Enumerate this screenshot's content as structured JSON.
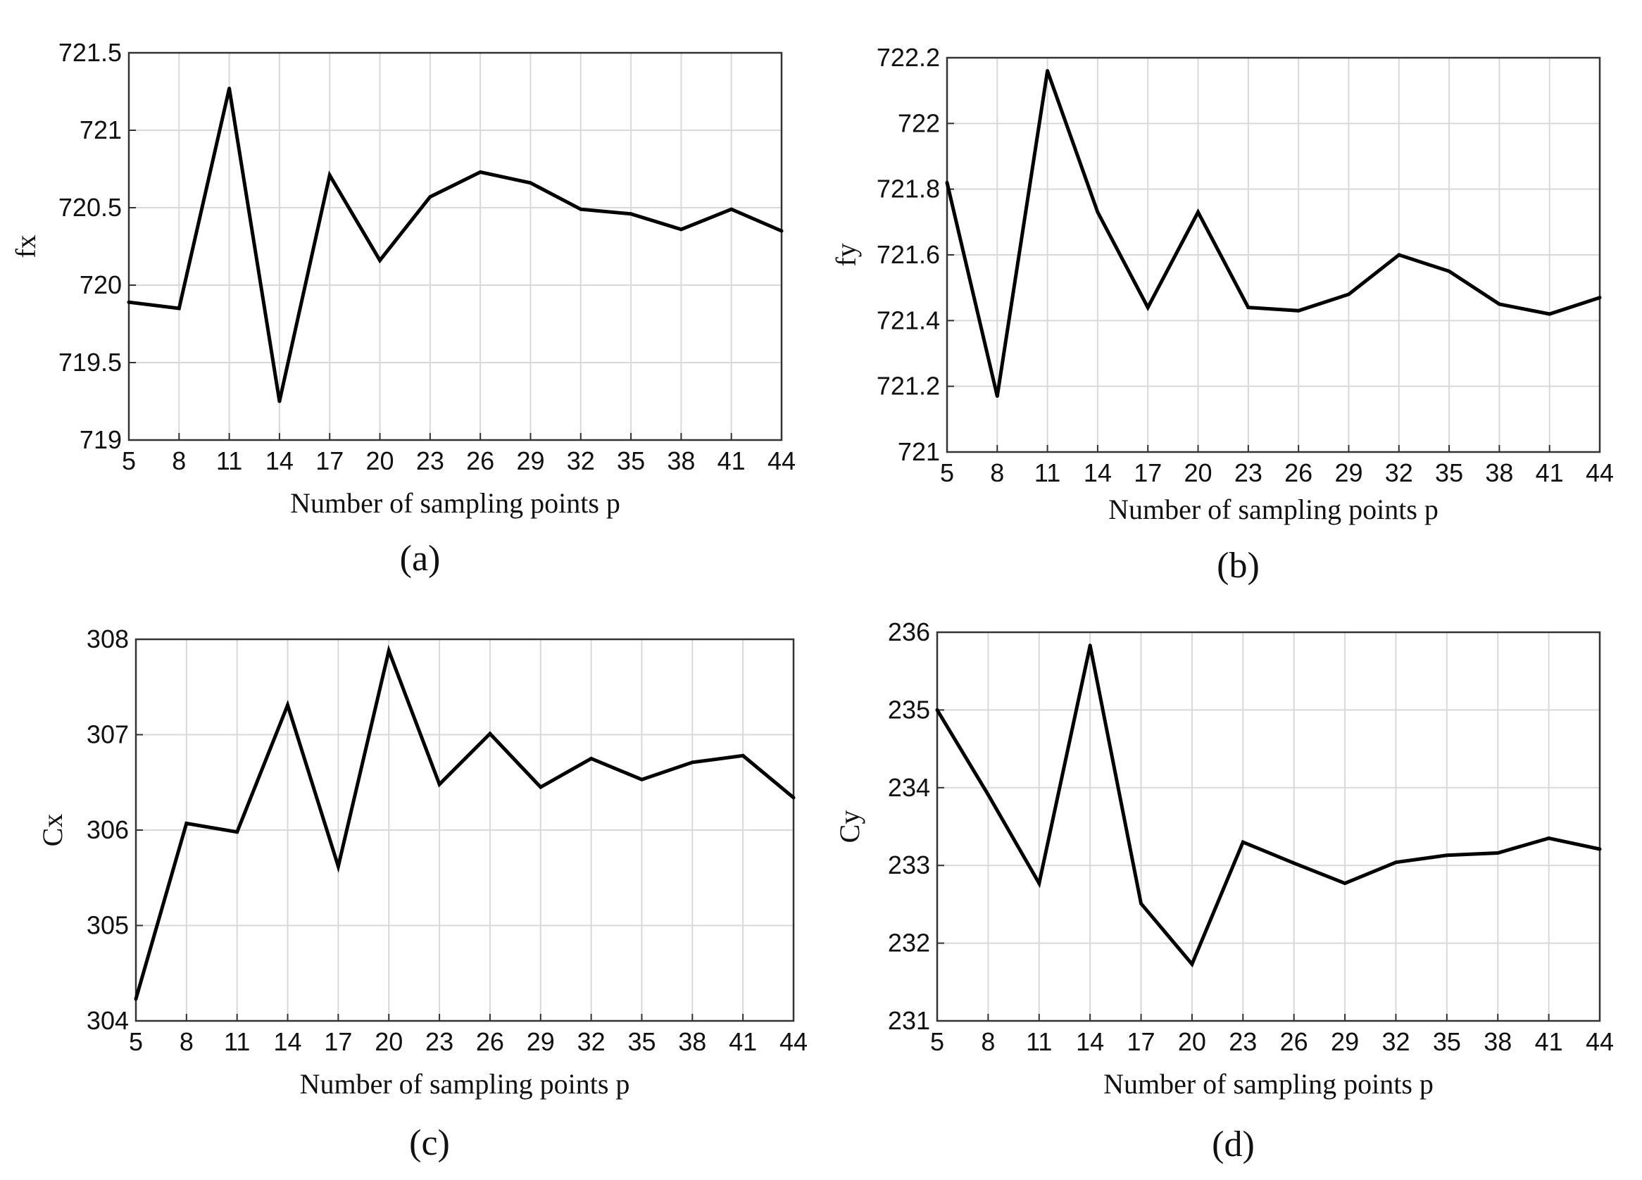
{
  "chart_data": [
    {
      "type": "line",
      "panel_label": "(a)",
      "xlabel": "Number of sampling points p",
      "ylabel": "fx",
      "x": [
        5,
        8,
        11,
        14,
        17,
        20,
        23,
        26,
        29,
        32,
        35,
        38,
        41,
        44
      ],
      "values": [
        719.89,
        719.85,
        721.27,
        719.25,
        720.71,
        720.16,
        720.57,
        720.73,
        720.66,
        720.49,
        720.46,
        720.36,
        720.49,
        720.35
      ],
      "xlim": [
        5,
        44
      ],
      "ylim": [
        719,
        721.5
      ],
      "xticks": [
        "5",
        "8",
        "11",
        "14",
        "17",
        "20",
        "23",
        "26",
        "29",
        "32",
        "35",
        "38",
        "41",
        "44"
      ],
      "yticks": [
        "719",
        "719.5",
        "720",
        "720.5",
        "721",
        "721.5"
      ],
      "grid": true
    },
    {
      "type": "line",
      "panel_label": "(b)",
      "xlabel": "Number of sampling points p",
      "ylabel": "fy",
      "x": [
        5,
        8,
        11,
        14,
        17,
        20,
        23,
        26,
        29,
        32,
        35,
        38,
        41,
        44
      ],
      "values": [
        721.82,
        721.17,
        722.16,
        721.73,
        721.44,
        721.73,
        721.44,
        721.43,
        721.48,
        721.6,
        721.55,
        721.45,
        721.42,
        721.47
      ],
      "xlim": [
        5,
        44
      ],
      "ylim": [
        721,
        722.2
      ],
      "xticks": [
        "5",
        "8",
        "11",
        "14",
        "17",
        "20",
        "23",
        "26",
        "29",
        "32",
        "35",
        "38",
        "41",
        "44"
      ],
      "yticks": [
        "721",
        "721.2",
        "721.4",
        "721.6",
        "721.8",
        "722",
        "722.2"
      ],
      "grid": true
    },
    {
      "type": "line",
      "panel_label": "(c)",
      "xlabel": "Number of sampling points p",
      "ylabel": "Cx",
      "x": [
        5,
        8,
        11,
        14,
        17,
        20,
        23,
        26,
        29,
        32,
        35,
        38,
        41,
        44
      ],
      "values": [
        304.23,
        306.07,
        305.98,
        307.31,
        305.62,
        307.88,
        306.48,
        307.01,
        306.45,
        306.75,
        306.53,
        306.71,
        306.78,
        306.34
      ],
      "xlim": [
        5,
        44
      ],
      "ylim": [
        304,
        308
      ],
      "xticks": [
        "5",
        "8",
        "11",
        "14",
        "17",
        "20",
        "23",
        "26",
        "29",
        "32",
        "35",
        "38",
        "41",
        "44"
      ],
      "yticks": [
        "304",
        "305",
        "306",
        "307",
        "308"
      ],
      "grid": true
    },
    {
      "type": "line",
      "panel_label": "(d)",
      "xlabel": "Number of sampling points p",
      "ylabel": "Cy",
      "x": [
        5,
        8,
        11,
        14,
        17,
        20,
        23,
        26,
        29,
        32,
        35,
        38,
        41,
        44
      ],
      "values": [
        235.0,
        233.91,
        232.77,
        235.83,
        232.51,
        231.73,
        233.3,
        233.03,
        232.77,
        233.04,
        233.13,
        233.16,
        233.35,
        233.21
      ],
      "xlim": [
        5,
        44
      ],
      "ylim": [
        231,
        236
      ],
      "xticks": [
        "5",
        "8",
        "11",
        "14",
        "17",
        "20",
        "23",
        "26",
        "29",
        "32",
        "35",
        "38",
        "41",
        "44"
      ],
      "yticks": [
        "231",
        "232",
        "233",
        "234",
        "235",
        "236"
      ],
      "grid": true
    }
  ]
}
